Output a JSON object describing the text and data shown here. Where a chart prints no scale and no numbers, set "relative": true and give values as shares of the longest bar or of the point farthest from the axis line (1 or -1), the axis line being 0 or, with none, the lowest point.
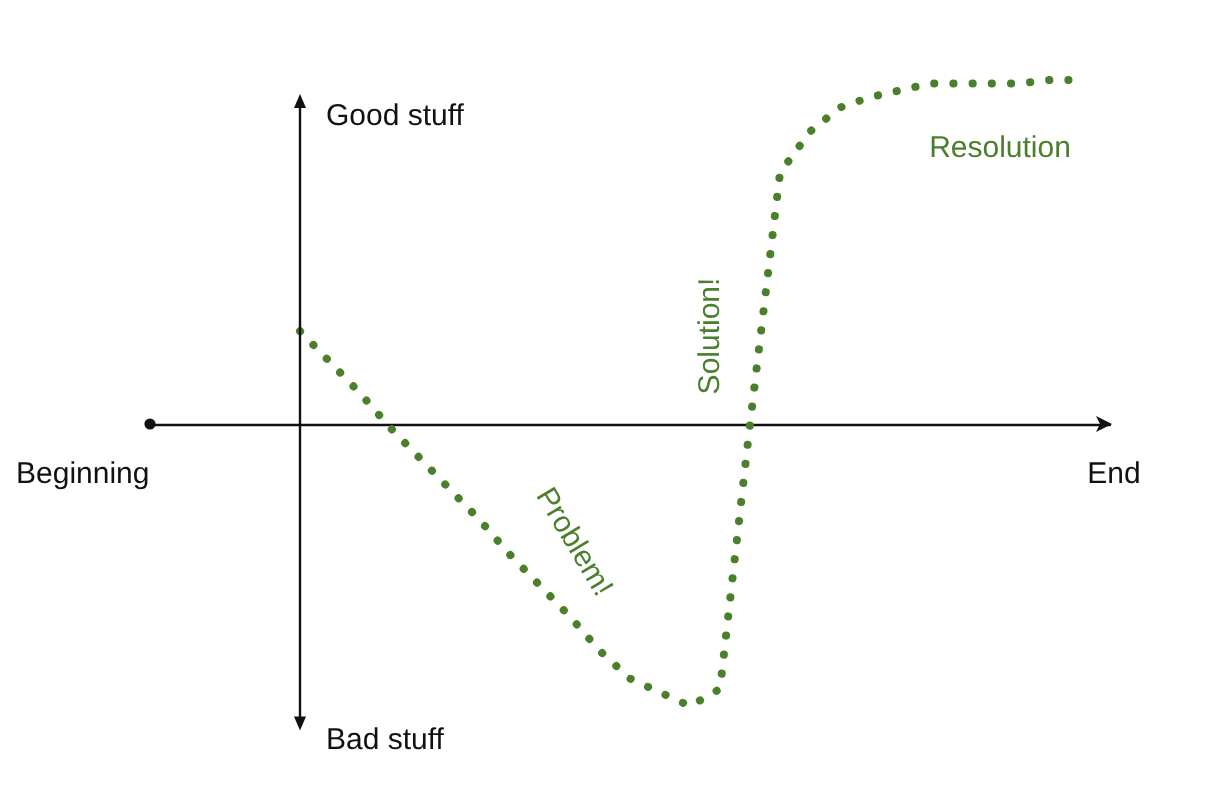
{
  "chart_data": {
    "type": "line",
    "relative": true,
    "categories": [
      null,
      null,
      null,
      null,
      null,
      null,
      null,
      null,
      null,
      null,
      null,
      null,
      null,
      null,
      null,
      null,
      null,
      null,
      null,
      null,
      null,
      null,
      null,
      null,
      null,
      null,
      null,
      null,
      null,
      null,
      null,
      null,
      null
    ],
    "series": [
      {
        "color": "#4a7f2c",
        "values": [
          null,
          null,
          null,
          null,
          null,
          0.27,
          0.18,
          0.09,
          -0.01,
          -0.1,
          -0.19,
          -0.28,
          -0.38,
          -0.47,
          -0.56,
          -0.66,
          -0.74,
          -0.78,
          -0.82,
          -0.77,
          0.0,
          0.73,
          0.85,
          0.92,
          0.95,
          0.97,
          0.99,
          0.99,
          0.99,
          0.99,
          1.0,
          1.0,
          null
        ]
      }
    ],
    "annotations": [
      "Good stuff",
      "Bad stuff",
      "Beginning",
      "End",
      "Problem!",
      "Solution!",
      "Resolution"
    ],
    "marker": "none",
    "line_style": "dotted",
    "grid": false
  }
}
